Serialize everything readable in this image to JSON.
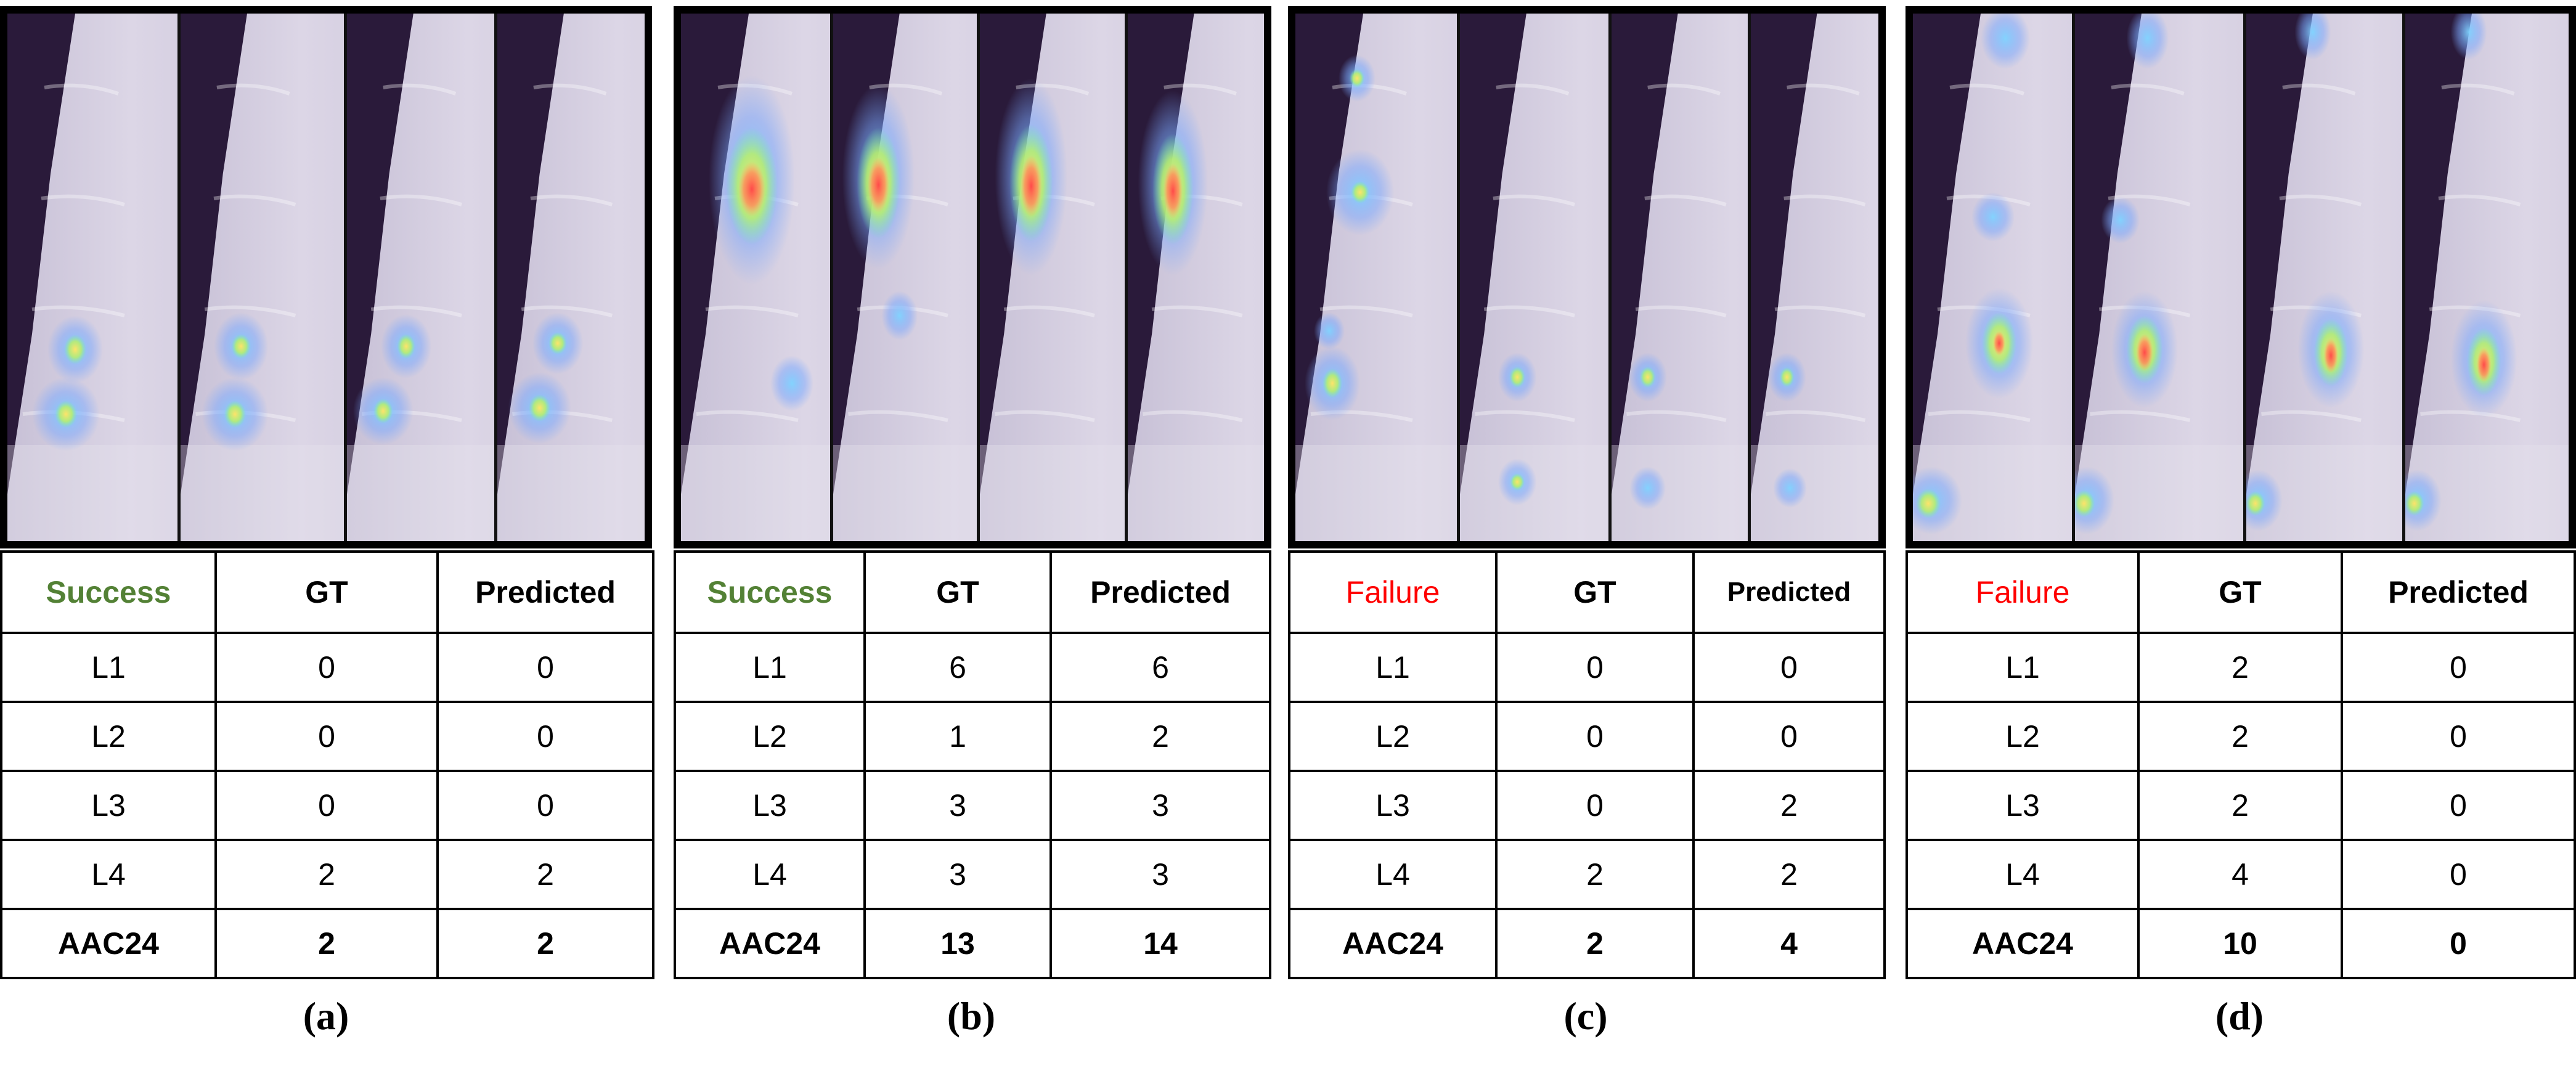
{
  "colors": {
    "success": "#538135",
    "failure": "#ff0000"
  },
  "panels": [
    {
      "caption": "(a)",
      "status": "Success",
      "status_kind": "success",
      "header": {
        "gt": "GT",
        "predicted": "Predicted"
      },
      "rows": [
        {
          "label": "L1",
          "gt": "0",
          "pred": "0"
        },
        {
          "label": "L2",
          "gt": "0",
          "pred": "0"
        },
        {
          "label": "L3",
          "gt": "0",
          "pred": "0"
        },
        {
          "label": "L4",
          "gt": "2",
          "pred": "2"
        }
      ],
      "total": {
        "label": "AAC24",
        "gt": "2",
        "pred": "2"
      }
    },
    {
      "caption": "(b)",
      "status": "Success",
      "status_kind": "success",
      "header": {
        "gt": "GT",
        "predicted": "Predicted"
      },
      "rows": [
        {
          "label": "L1",
          "gt": "6",
          "pred": "6"
        },
        {
          "label": "L2",
          "gt": "1",
          "pred": "2"
        },
        {
          "label": "L3",
          "gt": "3",
          "pred": "3"
        },
        {
          "label": "L4",
          "gt": "3",
          "pred": "3"
        }
      ],
      "total": {
        "label": "AAC24",
        "gt": "13",
        "pred": "14"
      }
    },
    {
      "caption": "(c)",
      "status": "Failure",
      "status_kind": "failure",
      "header": {
        "gt": "GT",
        "predicted": "Predicted"
      },
      "rows": [
        {
          "label": "L1",
          "gt": "0",
          "pred": "0"
        },
        {
          "label": "L2",
          "gt": "0",
          "pred": "0"
        },
        {
          "label": "L3",
          "gt": "0",
          "pred": "2"
        },
        {
          "label": "L4",
          "gt": "2",
          "pred": "2"
        }
      ],
      "total": {
        "label": "AAC24",
        "gt": "2",
        "pred": "4"
      }
    },
    {
      "caption": "(d)",
      "status": "Failure",
      "status_kind": "failure",
      "header": {
        "gt": "GT",
        "predicted": "Predicted"
      },
      "rows": [
        {
          "label": "L1",
          "gt": "2",
          "pred": "0"
        },
        {
          "label": "L2",
          "gt": "2",
          "pred": "0"
        },
        {
          "label": "L3",
          "gt": "2",
          "pred": "0"
        },
        {
          "label": "L4",
          "gt": "4",
          "pred": "0"
        }
      ],
      "total": {
        "label": "AAC24",
        "gt": "10",
        "pred": "0"
      }
    }
  ]
}
